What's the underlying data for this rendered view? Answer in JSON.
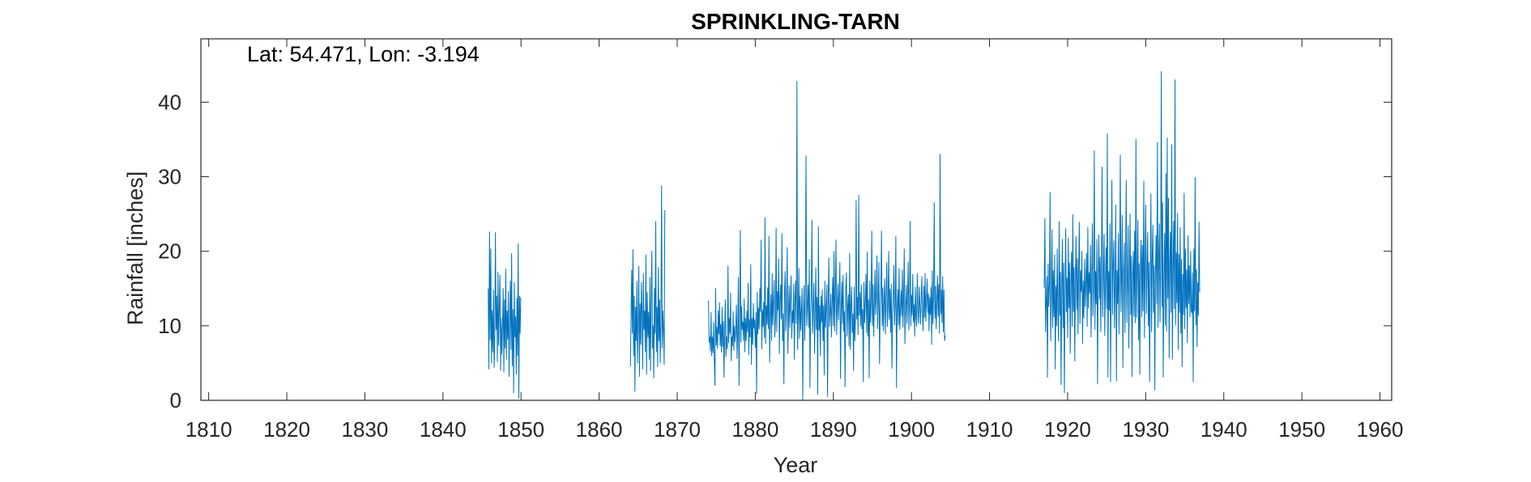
{
  "chart_data": {
    "type": "line",
    "title": "SPRINKLING-TARN",
    "annotation": "Lat: 54.471, Lon: -3.194",
    "xlabel": "Year",
    "ylabel": "Rainfall [inches]",
    "xlim": [
      1809,
      1961.5
    ],
    "ylim": [
      0,
      48.5
    ],
    "x_ticks": [
      1810,
      1820,
      1830,
      1840,
      1850,
      1860,
      1870,
      1880,
      1890,
      1900,
      1910,
      1920,
      1930,
      1940,
      1950,
      1960
    ],
    "y_ticks": [
      0,
      10,
      20,
      30,
      40
    ],
    "grid": false,
    "series_color": "#0072BD",
    "series": [
      {
        "segments": [
          {
            "start": 1845.8,
            "step": 0.0833333,
            "values": [
              15.0,
              4.2,
              22.6,
              8.1,
              20.3,
              5.0,
              12.0,
              6.5,
              14.8,
              4.4,
              8.0,
              22.5,
              9.5,
              14.0,
              5.2,
              17.2,
              7.4,
              12.6,
              16.8,
              4.0,
              11.0,
              6.2,
              9.8,
              15.0,
              3.8,
              13.5,
              7.0,
              17.6,
              5.5,
              12.0,
              8.2,
              14.6,
              3.2,
              10.5,
              16.0,
              6.8,
              19.7,
              4.6,
              12.2,
              1.0,
              15.8,
              8.5,
              11.2,
              3.5,
              13.7,
              6.0,
              21.0,
              0.3,
              14.0,
              9.0,
              13.8
            ]
          },
          {
            "start": 1864.0,
            "step": 0.0833333,
            "values": [
              4.5,
              11.0,
              17.5,
              9.0,
              20.2,
              6.0,
              14.0,
              1.2,
              12.5,
              8.0,
              16.0,
              5.0,
              10.5,
              18.0,
              3.2,
              13.0,
              7.5,
              15.8,
              11.5,
              4.2,
              17.0,
              9.5,
              12.0,
              6.5,
              19.5,
              3.5,
              14.5,
              8.5,
              11.8,
              5.5,
              16.5,
              4.0,
              13.2,
              20.0,
              7.0,
              10.0,
              3.0,
              15.0,
              9.0,
              24.0,
              6.5,
              12.5,
              4.5,
              17.8,
              8.0,
              13.5,
              5.0,
              10.5,
              28.8,
              7.0,
              12.0,
              9.5,
              4.8,
              25.5
            ]
          },
          {
            "start": 1874.0,
            "step": 0.0833333,
            "values": [
              13.4,
              7.8,
              8.5,
              6.6,
              11.8,
              6.0,
              8.5,
              6.4,
              10.5,
              5.4,
              2.0,
              15.0,
              7.4,
              9.8,
              7.0,
              12.0,
              8.9,
              13.1,
              7.3,
              10.2,
              6.5,
              12.5,
              7.2,
              10.6,
              3.1,
              9.0,
              13.5,
              5.9,
              8.5,
              6.9,
              18.0,
              7.7,
              11.0,
              9.0,
              14.4,
              5.3,
              8.5,
              7.3,
              11.9,
              6.7,
              10.0,
              7.9,
              9.6,
              12.8,
              5.6,
              9.0,
              16.5,
              2.0,
              11.0,
              22.8,
              7.8,
              12.6,
              9.5,
              10.5,
              8.0,
              13.6,
              6.5,
              11.0,
              8.0,
              12.0,
              9.2,
              15.7,
              6.1,
              10.8,
              8.5,
              18.2,
              4.8,
              11.0,
              7.5,
              13.0,
              9.7,
              10.8,
              7.1,
              11.8,
              0.9,
              14.5,
              8.9,
              12.4,
              9.6,
              15.0,
              11.9,
              21.5,
              6.9,
              12.1,
              9.9,
              13.2,
              8.4,
              24.5,
              7.6,
              12.7,
              10.2,
              15.1,
              9.6,
              22.0,
              5.1,
              11.4,
              14.2,
              8.0,
              17.0,
              10.1,
              13.0,
              16.1,
              8.5,
              11.0,
              23.1,
              9.2,
              14.6,
              12.1,
              19.0,
              6.3,
              13.3,
              15.5,
              10.9,
              22.4,
              8.0,
              11.6,
              2.2,
              14.5,
              17.3,
              9.3,
              12.8,
              20.5,
              6.3,
              11.4,
              15.4,
              9.8,
              13.5,
              16.7,
              8.3,
              12.0,
              10.4,
              15.6,
              5.5,
              13.5,
              16.0,
              10.3,
              42.8,
              6.8,
              11.2,
              17.7,
              8.3,
              14.0,
              9.4,
              12.1,
              15.0,
              0.1,
              11.2,
              15.4,
              8.0,
              13.6,
              32.8,
              10.0,
              12.6,
              15.5,
              9.8,
              18.9,
              1.7,
              11.5,
              14.0,
              24.2,
              9.0,
              12.4,
              15.7,
              6.3,
              11.6,
              17.8,
              9.5,
              13.8,
              0.8,
              23.3,
              9.4,
              12.7,
              6.0,
              14.0,
              10.5,
              14.8,
              8.0,
              12.7,
              3.4,
              16.0,
              9.8,
              12.8,
              15.5,
              0.5,
              13.0,
              19.1,
              9.9,
              11.8,
              14.3,
              8.5,
              13.0,
              16.5,
              10.0,
              20.0,
              9.3,
              14.1,
              21.5,
              8.8,
              12.3,
              15.6,
              10.8,
              14.0,
              18.5,
              2.9,
              12.2,
              15.9,
              10.3,
              16.8,
              9.3,
              11.9,
              1.8,
              14.8,
              17.1,
              8.6,
              12.6,
              14.2,
              7.3,
              19.7,
              6.8,
              12.7,
              15.2,
              9.1,
              11.6,
              4.0,
              15.2,
              8.0,
              11.0,
              26.8,
              10.9,
              13.8,
              8.8,
              27.5,
              11.4,
              14.4,
              10.0,
              15.5,
              9.6,
              12.2,
              2.5,
              15.8,
              10.4,
              12.7,
              16.9,
              9.1,
              19.9,
              8.6,
              13.5,
              3.0,
              16.0,
              10.4,
              13.1,
              22.7,
              10.0,
              15.5,
              8.6,
              13.1,
              17.5,
              11.5,
              14.0,
              19.4,
              9.6,
              13.6,
              18.5,
              4.9,
              12.0,
              14.6,
              22.7,
              10.0,
              15.1,
              9.3,
              13.1,
              16.3,
              8.9,
              14.0,
              18.5,
              9.9,
              12.6,
              20.0,
              10.9,
              14.9,
              9.1,
              15.6,
              4.3,
              11.7,
              13.9,
              18.1,
              10.1,
              12.8,
              22.0,
              1.7,
              12.2,
              14.9,
              10.1,
              17.7,
              9.5,
              11.8,
              14.7,
              11.3,
              17.5,
              9.8,
              13.7,
              20.3,
              7.6,
              12.7,
              15.5,
              10.3,
              14.0,
              18.6,
              9.4,
              13.0,
              24.0,
              10.0,
              14.1,
              11.4,
              16.9,
              10.5,
              12.8,
              8.6,
              15.2,
              11.2,
              9.9,
              17.0,
              12.2,
              10.3,
              15.2,
              12.8,
              10.2,
              13.8,
              16.6,
              11.4,
              9.3,
              15.3,
              11.1,
              17.0,
              10.6,
              13.3,
              16.3,
              11.8,
              14.3,
              9.3,
              13.8,
              11.5,
              15.2,
              7.5,
              17.4,
              10.3,
              14.2,
              26.5,
              11.0,
              15.3,
              9.6,
              13.3,
              16.7,
              11.3,
              15.5,
              9.0,
              33.0,
              11.6,
              14.8,
              10.4,
              16.6,
              9.2,
              14.8,
              8.0,
              8.7
            ]
          },
          {
            "start": 1917.0,
            "step": 0.0833333,
            "values": [
              15.1,
              24.4,
              9.2,
              13.1,
              16.6,
              3.1,
              18.3,
              12.6,
              15.5,
              27.9,
              8.0,
              14.1,
              22.9,
              9.8,
              17.4,
              11.2,
              19.5,
              4.2,
              15.3,
              10.0,
              20.3,
              12.1,
              8.0,
              24.0,
              11.4,
              17.2,
              2.1,
              15.3,
              21.6,
              9.7,
              18.4,
              1.0,
              14.8,
              23.0,
              11.9,
              16.4,
              8.4,
              21.8,
              12.4,
              18.4,
              6.3,
              15.9,
              19.9,
              9.9,
              24.9,
              11.9,
              17.8,
              5.3,
              16.3,
              22.0,
              12.2,
              19.0,
              8.9,
              17.5,
              23.9,
              10.3,
              17.4,
              14.6,
              20.0,
              7.6,
              16.0,
              11.1,
              18.9,
              12.6,
              15.7,
              19.7,
              9.9,
              23.2,
              12.4,
              17.1,
              14.4,
              20.8,
              8.5,
              15.9,
              23.7,
              11.3,
              14.8,
              33.5,
              9.5,
              17.3,
              12.9,
              21.6,
              2.2,
              16.1,
              22.2,
              13.6,
              19.2,
              9.2,
              17.9,
              31.3,
              11.2,
              16.5,
              22.3,
              8.7,
              15.5,
              20.5,
              12.3,
              35.8,
              3.1,
              17.3,
              12.1,
              23.7,
              2.5,
              16.8,
              29.5,
              11.5,
              18.2,
              21.4,
              9.7,
              15.4,
              26.2,
              2.6,
              17.4,
              13.0,
              22.4,
              8.9,
              18.0,
              32.9,
              11.9,
              16.4,
              24.8,
              4.4,
              16.8,
              21.1,
              9.1,
              18.1,
              29.5,
              10.4,
              16.3,
              23.4,
              7.0,
              17.0,
              25.0,
              11.5,
              19.3,
              3.2,
              17.0,
              20.0,
              11.3,
              22.7,
              10.4,
              35.0,
              11.1,
              17.1,
              24.2,
              8.1,
              18.3,
              3.5,
              18.9,
              21.5,
              11.2,
              20.8,
              12.0,
              29.4,
              8.4,
              18.2,
              26.2,
              11.6,
              17.5,
              22.5,
              10.0,
              18.5,
              2.5,
              16.2,
              27.7,
              9.2,
              19.0,
              23.5,
              11.8,
              18.1,
              1.4,
              16.9,
              22.1,
              13.0,
              34.6,
              9.8,
              19.3,
              23.7,
              10.5,
              17.9,
              44.1,
              12.6,
              26.5,
              3.1,
              17.2,
              22.4,
              10.1,
              30.4,
              9.3,
              35.2,
              13.7,
              27.1,
              5.7,
              18.4,
              22.6,
              11.8,
              34.3,
              5.5,
              17.2,
              24.0,
              12.3,
              43.0,
              10.1,
              19.8,
              13.1,
              25.1,
              6.8,
              19.6,
              11.8,
              23.2,
              9.0,
              18.9,
              4.5,
              16.9,
              11.5,
              27.8,
              9.6,
              20.3,
              12.4,
              17.5,
              7.7,
              22.1,
              13.0,
              18.1,
              11.2,
              20.0,
              12.0,
              11.7,
              17.1,
              2.5,
              20.3,
              12.0,
              29.9,
              10.1,
              17.5,
              7.2,
              15.8,
              11.4,
              23.9,
              14.5
            ]
          }
        ]
      }
    ]
  }
}
